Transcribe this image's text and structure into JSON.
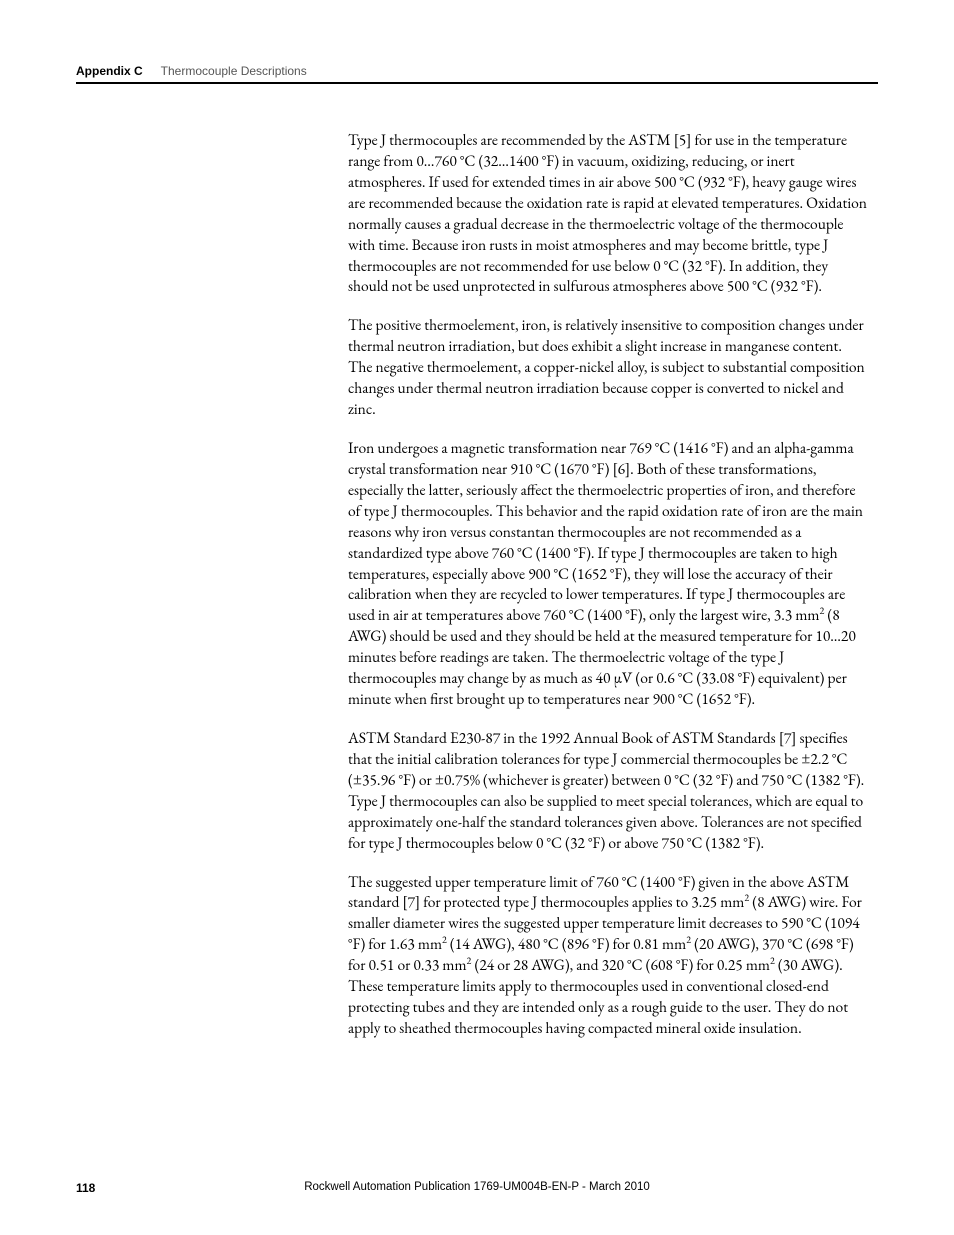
{
  "header": {
    "label": "Appendix C",
    "title": "Thermocouple Descriptions"
  },
  "paragraphs": {
    "p1": "Type J thermocouples are recommended by the ASTM [5] for use in the temperature range from 0…760 °C (32…1400 °F) in vacuum, oxidizing, reducing, or inert atmospheres. If used for extended times in air above 500 °C (932 °F), heavy gauge wires are recommended because the oxidation rate is rapid at elevated temperatures. Oxidation normally causes a gradual decrease in the thermoelectric voltage of the thermocouple with time.   Because iron rusts in moist atmospheres and may become brittle, type J thermocouples are not recommended for use below 0 °C (32 °F). In addition, they should not be used unprotected in sulfurous atmospheres above 500 °C (932 °F).",
    "p2": "The positive thermoelement, iron, is relatively insensitive to composition changes under thermal neutron irradiation, but does exhibit a slight increase in manganese content. The negative thermoelement, a copper-nickel alloy, is subject to substantial composition changes under thermal neutron irradiation because copper is converted to nickel and zinc.",
    "p3_a": "Iron undergoes a magnetic transformation near 769 °C (1416 °F) and an alpha-gamma crystal transformation near 910 °C (1670 °F) [6]. Both of these transformations, especially the latter, seriously affect the thermoelectric properties of iron, and therefore of type J thermocouples. This behavior and the rapid oxidation rate of iron are the main reasons why iron versus constantan thermocouples are not recommended as a standardized type above 760 °C (1400 °F). If type J thermocouples are taken to high temperatures, especially above 900 °C (1652 °F), they will lose the accuracy of their calibration when they are recycled to lower temperatures. If type J thermocouples are used in air at temperatures above 760 °C (1400 °F), only the largest wire, 3.3 mm",
    "p3_b": " (8 AWG) should be used and they should be held at the measured temperature for 10…20 minutes before readings are taken. The thermoelectric voltage of the type J thermocouples may change by as much as 40 μV (or 0.6 °C (33.08 °F) equivalent) per minute when first brought up to temperatures near 900 °C (1652 °F).",
    "p4": "ASTM Standard E230-87 in the 1992 Annual Book of ASTM Standards [7] specifies that the initial calibration tolerances for type J commercial thermocouples be ±2.2 °C (±35.96 °F) or ±0.75% (whichever is greater) between 0 °C (32 °F) and 750 °C (1382 °F). Type J thermocouples can also be supplied to meet special tolerances, which are equal to approximately one-half the standard tolerances given above. Tolerances are not specified for type J thermocouples below 0 °C (32 °F) or above 750 °C (1382 °F).",
    "p5_a": "The suggested upper temperature limit of 760 °C (1400 °F) given in the above ASTM standard [7] for protected type J thermocouples applies to 3.25 mm",
    "p5_b": " (8 AWG) wire. For smaller diameter wires the suggested upper temperature limit decreases to 590 °C (1094 °F) for 1.63 mm",
    "p5_c": " (14 AWG), 480 °C (896 °F) for 0.81 mm",
    "p5_d": " (20 AWG), 370 °C (698 °F) for 0.51 or 0.33 mm",
    "p5_e": " (24 or 28 AWG), and 320 °C (608 °F) for 0.25 mm",
    "p5_f": " (30 AWG). These temperature limits apply to thermocouples used in conventional closed-end protecting tubes and they are intended only as a rough guide to the user. They do not apply to sheathed thermocouples having compacted mineral oxide insulation.",
    "sup2": "2"
  },
  "footer": {
    "page": "118",
    "publication": "Rockwell Automation Publication 1769-UM004B-EN-P - March 2010"
  },
  "style": {
    "body_fontsize": 15.5,
    "header_fontsize": 12,
    "footer_fontsize": 11.5,
    "text_color": "#000000",
    "header_title_color": "#555555",
    "background": "#ffffff",
    "rule_color": "#000000",
    "rule_thickness": 2,
    "content_left_margin": 272
  }
}
